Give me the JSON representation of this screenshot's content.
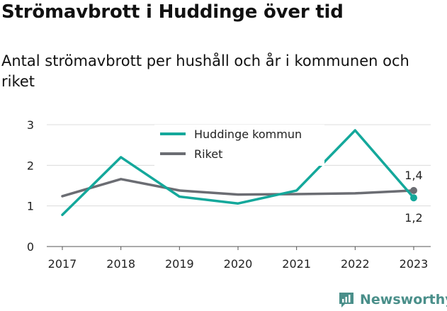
{
  "title": "Strömavbrott i Huddinge över tid",
  "subtitle": "Antal strömavbrott per hushåll och år i kommunen och riket",
  "brand": {
    "name": "Newsworthy",
    "icon": "newsworthy-logo-icon",
    "color": "#4a8f8a"
  },
  "chart_data": {
    "type": "line",
    "x": [
      2017,
      2018,
      2019,
      2020,
      2021,
      2022,
      2023
    ],
    "series": [
      {
        "name": "Huddinge kommun",
        "color": "#14a89b",
        "values": [
          0.78,
          2.2,
          1.23,
          1.06,
          1.38,
          2.86,
          1.2
        ]
      },
      {
        "name": "Riket",
        "color": "#6b6d73",
        "values": [
          1.24,
          1.66,
          1.38,
          1.28,
          1.29,
          1.31,
          1.38
        ]
      }
    ],
    "ylim": [
      0,
      3
    ],
    "yticks": [
      "0",
      "1",
      "2",
      "3"
    ],
    "xticks": [
      "2017",
      "2018",
      "2019",
      "2020",
      "2021",
      "2022",
      "2023"
    ],
    "annotations": [
      {
        "series": "Riket",
        "x": 2023,
        "text": "1,4"
      },
      {
        "series": "Huddinge kommun",
        "x": 2023,
        "text": "1,2"
      }
    ],
    "grid": true,
    "legend": "top-center"
  }
}
